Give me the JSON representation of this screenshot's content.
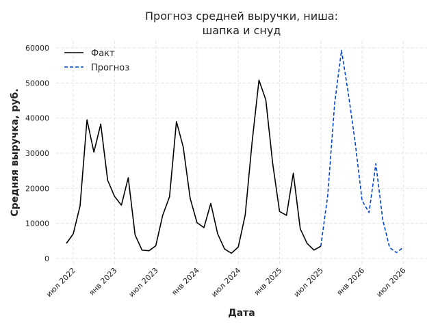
{
  "chart_data": {
    "type": "line",
    "title_line1": "Прогноз средней выручки, ниша:",
    "title_line2": "шапка и снуд",
    "xlabel": "Дата",
    "ylabel": "Средняя выручка, руб.",
    "x_ticks": [
      "июл 2022",
      "янв 2023",
      "июл 2023",
      "янв 2024",
      "июл 2024",
      "янв 2025",
      "июл 2025",
      "янв 2026",
      "июл 2026"
    ],
    "y_ticks": [
      "0",
      "10000",
      "20000",
      "30000",
      "40000",
      "50000",
      "60000"
    ],
    "ylim": [
      -1500,
      62500
    ],
    "grid": true,
    "legend_position": "top-left",
    "series": [
      {
        "name": "Факт",
        "color": "#000000",
        "style": "solid",
        "x": [
          "2022-06",
          "2022-07",
          "2022-08",
          "2022-09",
          "2022-10",
          "2022-11",
          "2022-12",
          "2023-01",
          "2023-02",
          "2023-03",
          "2023-04",
          "2023-05",
          "2023-06",
          "2023-07",
          "2023-08",
          "2023-09",
          "2023-10",
          "2023-11",
          "2023-12",
          "2024-01",
          "2024-02",
          "2024-03",
          "2024-04",
          "2024-05",
          "2024-06",
          "2024-07",
          "2024-08",
          "2024-09",
          "2024-10",
          "2024-11",
          "2024-12",
          "2025-01",
          "2025-02",
          "2025-03",
          "2025-04",
          "2025-05",
          "2025-06",
          "2025-07"
        ],
        "values": [
          4300,
          7000,
          15000,
          39500,
          30300,
          38300,
          22300,
          17700,
          15200,
          23000,
          6700,
          2400,
          2200,
          3600,
          12300,
          17600,
          39000,
          31700,
          17100,
          10200,
          8800,
          15700,
          7000,
          2700,
          1500,
          3300,
          12400,
          33000,
          50800,
          45200,
          27000,
          13400,
          12300,
          24300,
          8500,
          4300,
          2400,
          3500
        ]
      },
      {
        "name": "Прогноз",
        "color": "#0044cc",
        "style": "dashed",
        "x": [
          "2025-07",
          "2025-08",
          "2025-09",
          "2025-10",
          "2025-11",
          "2025-12",
          "2026-01",
          "2026-02",
          "2026-03",
          "2026-04",
          "2026-05",
          "2026-06",
          "2026-07",
          "2026-08"
        ],
        "values": [
          3500,
          18000,
          44000,
          59300,
          47000,
          33000,
          16500,
          13100,
          27000,
          11000,
          3100,
          1700,
          3200,
          null
        ]
      }
    ]
  }
}
